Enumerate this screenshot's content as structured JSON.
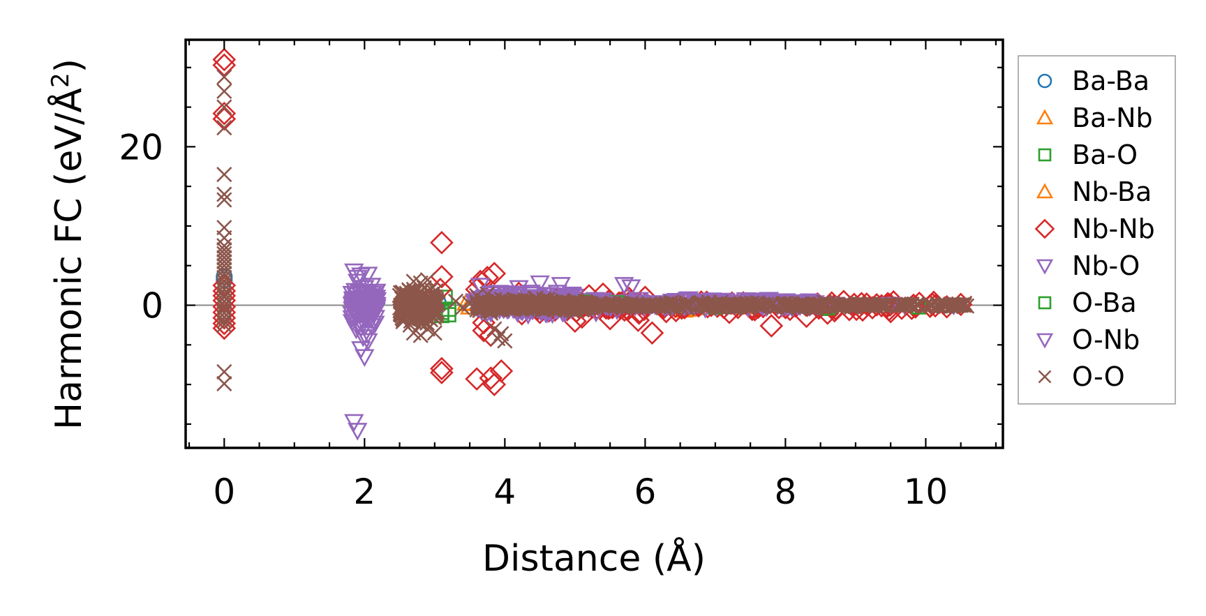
{
  "chart_data": {
    "type": "scatter",
    "xlabel": "Distance (Å)",
    "ylabel_main": "Harmonic FC (eV/Å",
    "ylabel_sup": "2",
    "ylabel_end": ")",
    "xlim": [
      -0.55,
      11.1
    ],
    "ylim": [
      -18.0,
      33.5
    ],
    "x_ticks": [
      0,
      2,
      4,
      6,
      8,
      10
    ],
    "x_tick_labels": [
      "0",
      "2",
      "4",
      "6",
      "8",
      "10"
    ],
    "y_ticks": [
      0,
      20
    ],
    "y_tick_labels": [
      "0",
      "20"
    ],
    "zero_line": true,
    "grid": false,
    "legend_position": "outside-right",
    "series": [
      {
        "name": "Ba-Ba",
        "marker": "circle",
        "color": "#1f77b4",
        "points": [
          [
            0,
            3.6
          ],
          [
            0,
            3.2
          ],
          [
            3.05,
            0.3
          ],
          [
            4.2,
            -0.1
          ],
          [
            5.7,
            0.1
          ],
          [
            7.3,
            0.05
          ],
          [
            9.0,
            0.0
          ]
        ]
      },
      {
        "name": "Ba-Nb",
        "marker": "triangle-up",
        "color": "#ff7f0e",
        "points": [
          [
            3.45,
            0.3
          ],
          [
            3.5,
            -0.2
          ],
          [
            6.55,
            -0.6
          ],
          [
            6.7,
            -0.3
          ],
          [
            7.4,
            -0.2
          ],
          [
            8.5,
            0.1
          ],
          [
            9.2,
            0.0
          ]
        ]
      },
      {
        "name": "Ba-O",
        "marker": "square",
        "color": "#2ca02c",
        "points": [
          [
            2.95,
            0.4
          ],
          [
            3.1,
            -0.9
          ],
          [
            3.2,
            -0.5
          ],
          [
            3.15,
            1.0
          ],
          [
            4.7,
            0.2
          ],
          [
            5.4,
            0.5
          ],
          [
            6.9,
            0.3
          ],
          [
            8.6,
            -0.4
          ],
          [
            9.9,
            -0.2
          ]
        ]
      },
      {
        "name": "Nb-Ba",
        "marker": "triangle-up",
        "color": "#ff7f0e",
        "points": [
          [
            3.5,
            0.2
          ],
          [
            5.0,
            0.3
          ],
          [
            6.6,
            -0.5
          ],
          [
            7.9,
            0.1
          ]
        ]
      },
      {
        "name": "Nb-Nb",
        "marker": "diamond",
        "color": "#d62728",
        "points": [
          [
            0,
            31.0
          ],
          [
            0,
            30.3
          ],
          [
            0,
            24.2
          ],
          [
            0,
            23.5
          ],
          [
            0,
            2.5
          ],
          [
            0,
            1.8
          ],
          [
            0,
            1.2
          ],
          [
            0,
            0.6
          ],
          [
            0,
            -0.2
          ],
          [
            0,
            -0.9
          ],
          [
            0,
            -1.6
          ],
          [
            0,
            -2.3
          ],
          [
            0,
            -2.9
          ],
          [
            3.1,
            7.9
          ],
          [
            3.1,
            3.6
          ],
          [
            3.08,
            2.0
          ],
          [
            3.1,
            -8.0
          ],
          [
            3.1,
            -8.5
          ],
          [
            3.65,
            3.0
          ],
          [
            3.6,
            2.0
          ],
          [
            3.7,
            -2.2
          ],
          [
            3.85,
            4.0
          ],
          [
            3.75,
            3.5
          ],
          [
            3.6,
            -9.3
          ],
          [
            3.8,
            -9.2
          ],
          [
            3.95,
            -8.3
          ],
          [
            3.85,
            -10.0
          ],
          [
            3.8,
            -3.8
          ],
          [
            3.7,
            -3.2
          ],
          [
            4.2,
            1.5
          ],
          [
            4.5,
            -0.9
          ],
          [
            4.9,
            0.8
          ],
          [
            5.0,
            -2.0
          ],
          [
            5.1,
            -1.5
          ],
          [
            5.2,
            1.2
          ],
          [
            5.4,
            1.4
          ],
          [
            5.5,
            -1.7
          ],
          [
            5.9,
            -1.9
          ],
          [
            6.0,
            1.0
          ],
          [
            6.1,
            -3.5
          ],
          [
            6.3,
            -0.8
          ],
          [
            6.8,
            0.4
          ],
          [
            7.2,
            -0.9
          ],
          [
            7.4,
            0.3
          ],
          [
            7.8,
            -2.6
          ],
          [
            8.0,
            -0.3
          ],
          [
            8.3,
            -1.4
          ],
          [
            8.6,
            -1.0
          ],
          [
            8.7,
            -0.7
          ],
          [
            9.1,
            -0.6
          ],
          [
            9.5,
            -0.8
          ],
          [
            9.8,
            -0.4
          ],
          [
            10.3,
            -0.2
          ],
          [
            10.5,
            0.1
          ]
        ]
      },
      {
        "name": "Nb-O",
        "marker": "triangle-down",
        "color": "#9467bd",
        "points": [
          [
            1.85,
            4.3
          ],
          [
            1.95,
            3.8
          ],
          [
            2.05,
            3.9
          ],
          [
            1.9,
            3.0
          ],
          [
            2.0,
            2.2
          ],
          [
            2.1,
            2.5
          ],
          [
            1.88,
            1.3
          ],
          [
            2.02,
            0.8
          ],
          [
            2.15,
            1.5
          ],
          [
            1.92,
            0.0
          ],
          [
            2.08,
            0.3
          ],
          [
            1.9,
            -1.0
          ],
          [
            2.05,
            -1.4
          ],
          [
            1.95,
            -2.2
          ],
          [
            1.88,
            -3.0
          ],
          [
            2.1,
            -2.6
          ],
          [
            1.98,
            -4.0
          ],
          [
            2.05,
            -3.6
          ],
          [
            1.95,
            -5.5
          ],
          [
            2.0,
            -6.5
          ],
          [
            1.85,
            -14.7
          ],
          [
            1.9,
            -15.8
          ],
          [
            3.65,
            2.5
          ],
          [
            3.8,
            1.5
          ],
          [
            4.2,
            2.2
          ],
          [
            4.3,
            0.5
          ],
          [
            4.5,
            2.8
          ],
          [
            4.8,
            2.6
          ],
          [
            4.6,
            -1.0
          ],
          [
            5.0,
            0.6
          ],
          [
            5.3,
            -0.9
          ],
          [
            5.7,
            2.6
          ],
          [
            5.8,
            2.3
          ],
          [
            5.6,
            -0.6
          ],
          [
            6.1,
            0.3
          ],
          [
            6.6,
            0.7
          ],
          [
            7.0,
            0.2
          ],
          [
            7.5,
            0.4
          ],
          [
            8.0,
            0.3
          ],
          [
            8.7,
            0.1
          ],
          [
            9.5,
            0.1
          ],
          [
            10.4,
            0.0
          ]
        ]
      },
      {
        "name": "O-Ba",
        "marker": "square",
        "color": "#2ca02c",
        "points": [
          [
            3.1,
            -1.3
          ],
          [
            3.2,
            -1.2
          ],
          [
            5.1,
            0.4
          ],
          [
            5.6,
            0.3
          ],
          [
            7.0,
            -0.2
          ],
          [
            8.6,
            -0.3
          ],
          [
            9.9,
            -0.2
          ]
        ]
      },
      {
        "name": "O-Nb",
        "marker": "triangle-down",
        "color": "#9467bd",
        "points": [
          [
            1.9,
            3.5
          ],
          [
            2.0,
            -0.8
          ],
          [
            2.1,
            1.0
          ],
          [
            1.95,
            -2.8
          ],
          [
            2.05,
            -4.5
          ],
          [
            3.7,
            0.3
          ],
          [
            4.1,
            0.5
          ],
          [
            4.4,
            -0.3
          ],
          [
            4.9,
            0.4
          ],
          [
            5.5,
            0.2
          ],
          [
            6.3,
            0.1
          ],
          [
            7.2,
            0.1
          ],
          [
            8.5,
            -0.1
          ],
          [
            9.7,
            0.0
          ]
        ]
      },
      {
        "name": "O-O",
        "marker": "x",
        "color": "#8c564b",
        "points": [
          [
            0,
            28.8
          ],
          [
            0,
            27.0
          ],
          [
            0,
            25.0
          ],
          [
            0,
            22.4
          ],
          [
            0,
            16.5
          ],
          [
            0,
            14.0
          ],
          [
            0,
            13.3
          ],
          [
            0,
            9.8
          ],
          [
            0,
            8.5
          ],
          [
            0,
            7.5
          ],
          [
            0,
            7.0
          ],
          [
            0,
            6.5
          ],
          [
            0,
            6.0
          ],
          [
            0,
            5.5
          ],
          [
            0,
            5.0
          ],
          [
            0,
            4.5
          ],
          [
            0,
            4.0
          ],
          [
            0,
            3.5
          ],
          [
            0,
            3.0
          ],
          [
            0,
            2.5
          ],
          [
            0,
            2.0
          ],
          [
            0,
            1.5
          ],
          [
            0,
            1.0
          ],
          [
            0,
            0.5
          ],
          [
            0,
            0.0
          ],
          [
            0,
            -0.5
          ],
          [
            0,
            -1.0
          ],
          [
            0,
            -1.5
          ],
          [
            0,
            -2.0
          ],
          [
            0,
            -2.5
          ],
          [
            0,
            -8.4
          ],
          [
            0,
            -9.9
          ],
          [
            2.6,
            1.5
          ],
          [
            2.6,
            -1.0
          ],
          [
            2.55,
            0.2
          ],
          [
            2.65,
            -2.5
          ],
          [
            2.7,
            3.0
          ],
          [
            2.7,
            2.0
          ],
          [
            2.7,
            0.8
          ],
          [
            2.7,
            -0.6
          ],
          [
            2.7,
            -2.0
          ],
          [
            2.7,
            -3.5
          ],
          [
            2.75,
            1.2
          ],
          [
            2.8,
            2.8
          ],
          [
            2.8,
            1.6
          ],
          [
            2.8,
            0.4
          ],
          [
            2.8,
            -0.8
          ],
          [
            2.8,
            -2.4
          ],
          [
            2.8,
            -3.8
          ],
          [
            2.85,
            2.2
          ],
          [
            2.85,
            0.0
          ],
          [
            2.9,
            3.2
          ],
          [
            2.9,
            1.0
          ],
          [
            2.9,
            -1.5
          ],
          [
            2.9,
            -3.0
          ],
          [
            2.95,
            2.0
          ],
          [
            2.95,
            -0.4
          ],
          [
            3.0,
            1.0
          ],
          [
            3.0,
            -1.2
          ],
          [
            3.0,
            -3.5
          ],
          [
            3.05,
            0.2
          ],
          [
            3.3,
            0.5
          ],
          [
            3.4,
            -0.3
          ],
          [
            3.5,
            0.2
          ],
          [
            3.6,
            1.2
          ],
          [
            3.65,
            -0.6
          ],
          [
            3.7,
            0.6
          ],
          [
            3.75,
            1.4
          ],
          [
            3.8,
            -1.0
          ],
          [
            3.85,
            -3.0
          ],
          [
            3.9,
            -4.2
          ],
          [
            3.95,
            -3.6
          ],
          [
            4.0,
            -4.5
          ],
          [
            4.0,
            0.6
          ],
          [
            4.1,
            -0.2
          ],
          [
            4.2,
            0.3
          ],
          [
            4.4,
            0.0
          ],
          [
            4.6,
            -0.4
          ],
          [
            4.8,
            0.1
          ],
          [
            5.0,
            -0.3
          ],
          [
            5.2,
            0.2
          ],
          [
            5.4,
            -0.2
          ],
          [
            5.6,
            0.0
          ],
          [
            5.8,
            0.3
          ],
          [
            6.0,
            -0.1
          ],
          [
            6.3,
            0.1
          ],
          [
            6.6,
            -0.4
          ],
          [
            6.9,
            0.0
          ],
          [
            7.2,
            0.1
          ],
          [
            7.5,
            -0.1
          ],
          [
            7.8,
            0.0
          ],
          [
            8.1,
            0.1
          ],
          [
            8.4,
            -0.1
          ],
          [
            8.8,
            0.0
          ],
          [
            9.0,
            0.1
          ],
          [
            9.3,
            -0.1
          ],
          [
            9.6,
            0.0
          ],
          [
            9.9,
            0.0
          ],
          [
            10.2,
            -0.1
          ],
          [
            10.4,
            0.0
          ],
          [
            10.55,
            0.0
          ]
        ]
      }
    ],
    "dense_bands": [
      {
        "series": "Nb-O",
        "x_range": [
          1.82,
          2.18
        ],
        "y_range": [
          -3.0,
          2.8
        ],
        "count": 120
      },
      {
        "series": "O-O",
        "x_range": [
          2.5,
          3.05
        ],
        "y_range": [
          -3.2,
          2.8
        ],
        "count": 180
      },
      {
        "series": "Nb-O",
        "x_range": [
          3.55,
          5.0
        ],
        "y_range": [
          -1.4,
          2.0
        ],
        "count": 260
      },
      {
        "series": "O-O",
        "x_range": [
          3.6,
          5.2
        ],
        "y_range": [
          -1.0,
          1.0
        ],
        "count": 300
      },
      {
        "series": "Nb-Nb",
        "x_range": [
          4.0,
          6.5
        ],
        "y_range": [
          -1.4,
          1.2
        ],
        "count": 70
      },
      {
        "series": "Nb-O",
        "x_range": [
          5.0,
          8.5
        ],
        "y_range": [
          -0.6,
          0.9
        ],
        "count": 160
      },
      {
        "series": "O-O",
        "x_range": [
          5.0,
          9.0
        ],
        "y_range": [
          -0.5,
          0.5
        ],
        "count": 240
      },
      {
        "series": "Nb-Nb",
        "x_range": [
          6.5,
          10.2
        ],
        "y_range": [
          -0.8,
          0.7
        ],
        "count": 60
      },
      {
        "series": "O-O",
        "x_range": [
          8.8,
          10.6
        ],
        "y_range": [
          -0.3,
          0.3
        ],
        "count": 80
      }
    ]
  }
}
